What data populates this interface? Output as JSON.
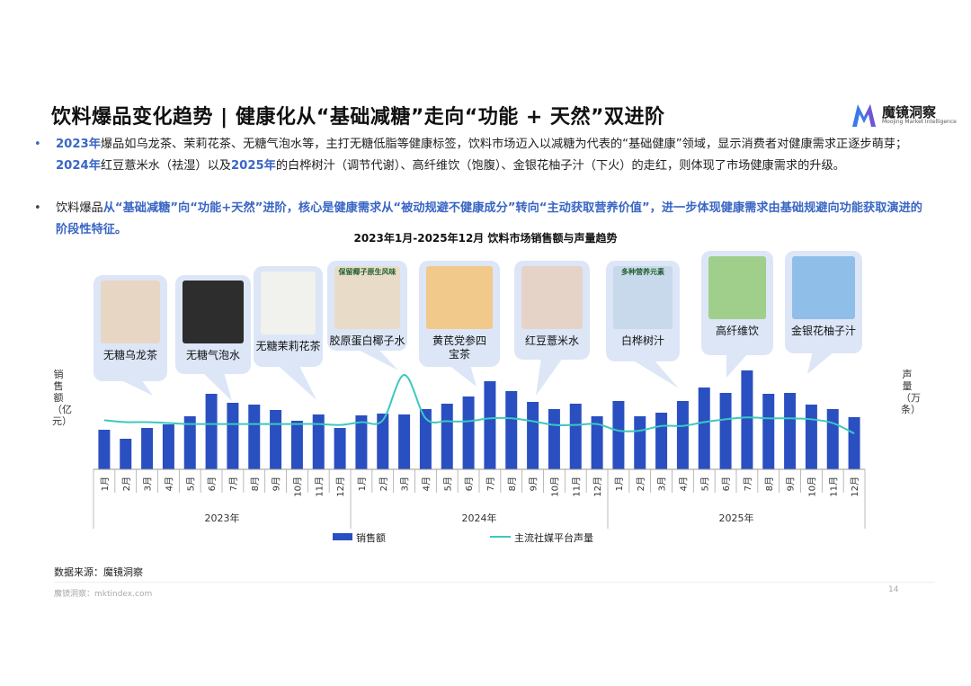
{
  "header": {
    "title": "饮料爆品变化趋势 | 健康化从“基础减糖”走向“功能 + 天然”双进阶",
    "brand_name": "魔镜洞察",
    "brand_sub": "Moojing Market Intelligence"
  },
  "bullets": {
    "p1": {
      "t1": "2023年",
      "t2": "爆品如乌龙茶、茉莉花茶、无糖气泡水等，主打无糖低脂等健康标签，饮料市场迈入以减糖为代表的“基础健康”领域，显示消费者对健康需求正逐步萌芽；",
      "t3": "2024年",
      "t4": "红豆薏米水（祛湿）以及",
      "t5": "2025年",
      "t6": "的白桦树汁（调节代谢）、高纤维饮（饱腹）、金银花柚子汁（下火）的走红，则体现了市场健康需求的升级。"
    },
    "p2": {
      "t1": "饮料爆品",
      "t2": "从“基础减糖”向“功能+天然”进阶，核心是健康需求从“被动规避不健康成分”转向“主动获取营养价值”，进一步体现健康需求由基础规避向功能获取演进的阶段性特征。"
    }
  },
  "products": [
    {
      "label": "无糖乌龙茶",
      "img_text": ""
    },
    {
      "label": "无糖气泡水",
      "img_text": ""
    },
    {
      "label": "无糖茉莉花茶",
      "img_text": ""
    },
    {
      "label": "胶原蛋白椰子水",
      "img_text": "保留椰子原生风味"
    },
    {
      "label": "黄芪党参四宝茶",
      "img_text": ""
    },
    {
      "label": "红豆薏米水",
      "img_text": ""
    },
    {
      "label": "白桦树汁",
      "img_text": "多种营养元素"
    },
    {
      "label": "高纤维饮",
      "img_text": ""
    },
    {
      "label": "金银花柚子汁",
      "img_text": ""
    }
  ],
  "chart_data": {
    "type": "bar",
    "title": "2023年1月-2025年12月 饮料市场销售额与声量趋势",
    "ylabel_left": "销售额（亿元）",
    "ylabel_right": "声量（万条）",
    "months": [
      "1月",
      "2月",
      "3月",
      "4月",
      "5月",
      "6月",
      "7月",
      "8月",
      "9月",
      "10月",
      "11月",
      "12月"
    ],
    "years": [
      "2023年",
      "2024年",
      "2025年"
    ],
    "series": [
      {
        "name": "销售额",
        "type": "bar",
        "color": "#2a4fc0",
        "values": [
          44,
          34,
          46,
          50,
          59,
          84,
          74,
          72,
          66,
          54,
          61,
          46,
          60,
          62,
          61,
          67,
          73,
          81,
          98,
          87,
          75,
          67,
          73,
          59,
          76,
          59,
          63,
          76,
          91,
          85,
          110,
          84,
          85,
          72,
          67,
          58
        ]
      },
      {
        "name": "主流社媒平台声量",
        "type": "line",
        "color": "#3cc8c0",
        "values": [
          52,
          50,
          50,
          49,
          48,
          48,
          48,
          48,
          48,
          48,
          48,
          47,
          50,
          52,
          100,
          54,
          51,
          51,
          54,
          54,
          51,
          47,
          47,
          48,
          41,
          41,
          46,
          46,
          50,
          53,
          55,
          54,
          54,
          53,
          49,
          38
        ]
      }
    ],
    "legend_position": "bottom",
    "grid": false
  },
  "footer": {
    "source": "数据来源：魔镜洞察",
    "site": "魔镜洞察：mktindex.com",
    "page": "14"
  }
}
